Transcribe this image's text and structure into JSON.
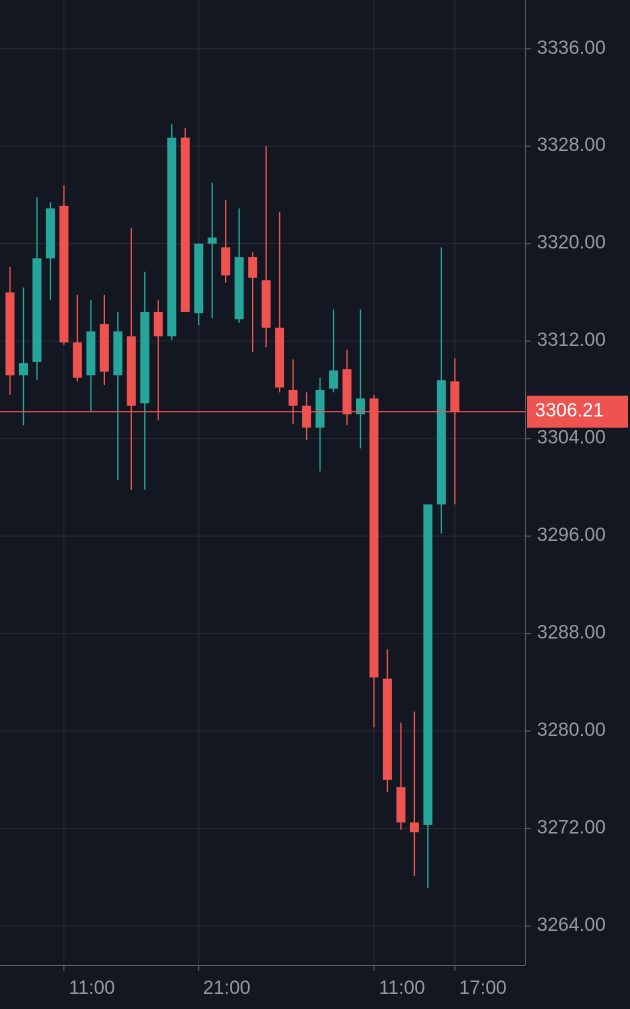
{
  "chart_data": {
    "type": "candlestick",
    "categories": [
      null,
      null,
      null,
      null,
      "11:00",
      null,
      null,
      null,
      null,
      null,
      null,
      null,
      null,
      null,
      "21:00",
      null,
      null,
      null,
      null,
      null,
      null,
      null,
      null,
      null,
      null,
      null,
      null,
      "11:00",
      null,
      null,
      null,
      null,
      null,
      "17:00"
    ],
    "open": [
      3316.0,
      3309.2,
      3310.3,
      3318.8,
      3323.1,
      3311.9,
      3309.2,
      3313.4,
      3309.2,
      3312.4,
      3306.9,
      3314.4,
      3312.4,
      3328.7,
      3314.3,
      3320.0,
      3319.7,
      3313.8,
      3318.9,
      3317.0,
      3313.1,
      3308.0,
      3306.7,
      3304.9,
      3308.1,
      3309.7,
      3306.0,
      3307.3,
      3284.3,
      3275.4,
      3272.5,
      3272.3,
      3298.6,
      3308.7
    ],
    "high": [
      3318.1,
      3316.4,
      3323.8,
      3323.4,
      3324.8,
      3315.8,
      3315.4,
      3315.8,
      3314.4,
      3321.3,
      3317.7,
      3315.4,
      3329.8,
      3329.5,
      3320.0,
      3325.0,
      3323.6,
      3322.9,
      3319.3,
      3328.0,
      3322.6,
      3310.5,
      3307.8,
      3309.0,
      3314.6,
      3311.3,
      3314.6,
      3307.6,
      3286.7,
      3280.7,
      3281.6,
      3298.6,
      3319.7,
      3310.6
    ],
    "low": [
      3307.6,
      3305.1,
      3308.8,
      3315.4,
      3311.7,
      3308.7,
      3306.2,
      3308.4,
      3300.6,
      3299.8,
      3299.8,
      3305.5,
      3312.1,
      3314.4,
      3313.3,
      3313.9,
      3316.8,
      3313.5,
      3311.1,
      3311.5,
      3307.8,
      3305.2,
      3303.9,
      3301.3,
      3307.8,
      3305.1,
      3303.2,
      3280.3,
      3275.0,
      3271.9,
      3268.1,
      3267.1,
      3296.2,
      3298.6
    ],
    "close": [
      3309.2,
      3310.2,
      3318.8,
      3322.9,
      3311.9,
      3309.0,
      3312.8,
      3309.5,
      3312.8,
      3306.7,
      3314.4,
      3312.4,
      3328.7,
      3314.4,
      3320.0,
      3320.5,
      3317.4,
      3318.9,
      3317.2,
      3313.1,
      3308.2,
      3306.7,
      3304.9,
      3308.0,
      3309.6,
      3306.0,
      3307.3,
      3284.4,
      3276.0,
      3272.5,
      3271.7,
      3298.6,
      3308.8,
      3306.2
    ],
    "up_color": "#26a69a",
    "down_color": "#ef5350",
    "last_price": 3306.21,
    "last_price_color": "#ef5350",
    "ylim": [
      3260.8,
      3340.0
    ],
    "yticks": [
      {
        "value": 3264,
        "label": "3264.00"
      },
      {
        "value": 3272,
        "label": "3272.00"
      },
      {
        "value": 3280,
        "label": "3280.00"
      },
      {
        "value": 3288,
        "label": "3288.00"
      },
      {
        "value": 3296,
        "label": "3296.00"
      },
      {
        "value": 3304,
        "label": "3304.00"
      },
      {
        "value": 3312,
        "label": "3312.00"
      },
      {
        "value": 3320,
        "label": "3320.00"
      },
      {
        "value": 3328,
        "label": "3328.00"
      },
      {
        "value": 3336,
        "label": "3336.00"
      }
    ],
    "grid": true
  }
}
